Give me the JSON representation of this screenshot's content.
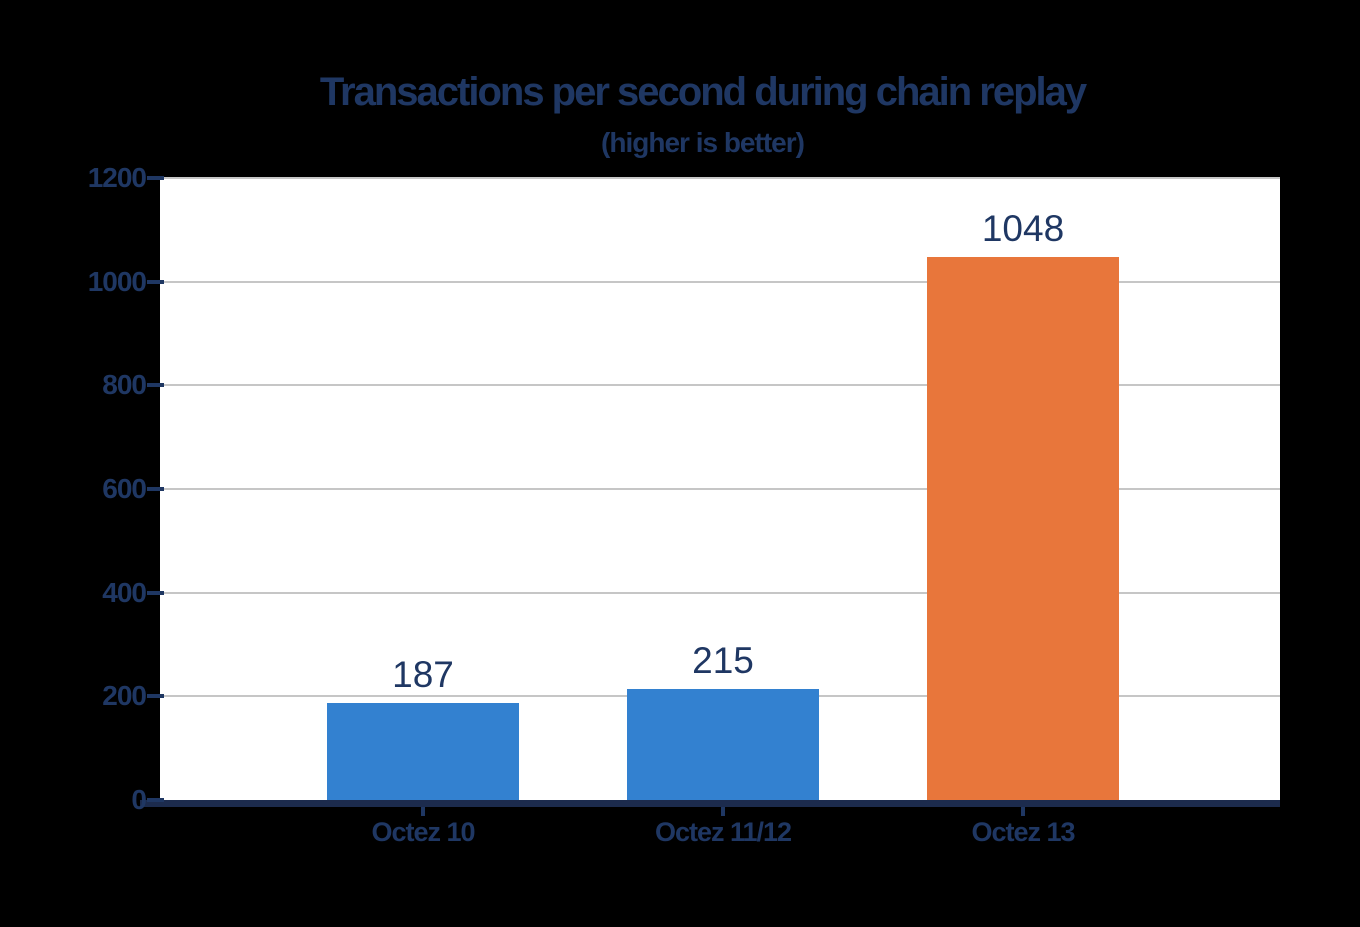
{
  "chart_data": {
    "type": "bar",
    "title": "Transactions per second during chain replay",
    "subtitle": "(higher is better)",
    "categories": [
      "Octez 10",
      "Octez 11/12",
      "Octez 13"
    ],
    "values": [
      187,
      215,
      1048
    ],
    "value_labels": [
      "187",
      "215",
      "1048"
    ],
    "series": [
      {
        "name": "Transactions per second",
        "values": [
          187,
          215,
          1048
        ]
      }
    ],
    "bar_colors": [
      "#3381d0",
      "#3381d0",
      "#e8763b"
    ],
    "xlabel": "",
    "ylabel": "",
    "ylim": [
      0,
      1200
    ],
    "yticks": [
      0,
      200,
      400,
      600,
      800,
      1000,
      1200
    ],
    "grid": true,
    "legend": "none"
  },
  "colors": {
    "text_navy": "#1f3763",
    "axis_navy": "#1c2b4d",
    "gridline": "#c6c6c6",
    "plot_background": "#ffffff",
    "page_background": "#000000",
    "bar_blue": "#3381d0",
    "bar_orange": "#e8763b"
  }
}
